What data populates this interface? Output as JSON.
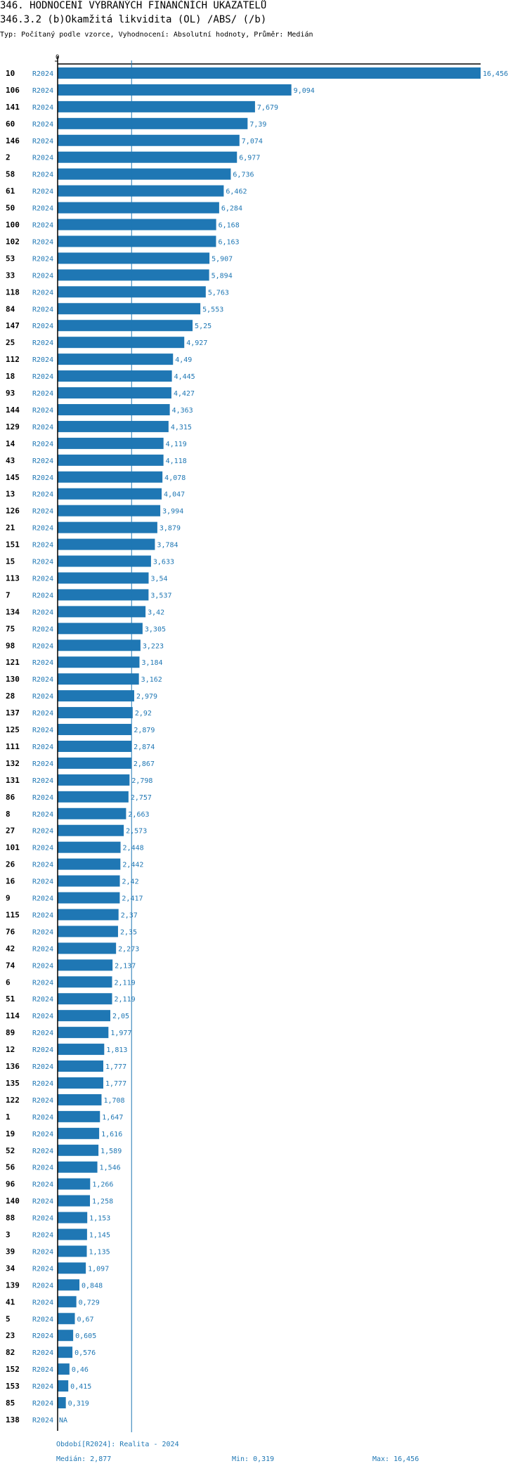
{
  "header": {
    "title": "346. HODNOCENÍ VYBRANÝCH FINANČNÍCH UKAZATELŮ",
    "subtitle": "346.3.2 (b)Okamžitá likvidita (OL) /ABS/ (/b)",
    "type_line": "Typ: Počítaný podle vzorce, Vyhodnocení: Absolutní hodnoty, Průměr: Medián"
  },
  "chart_data": {
    "type": "bar",
    "orientation": "horizontal",
    "axis_zero_label": "0",
    "period_label": "R2024",
    "bar_color": "#1f77b4",
    "median_line_color": "#1f77b4",
    "median_value": 2.877,
    "xlim": [
      0,
      16.456
    ],
    "categories": [
      "10",
      "106",
      "141",
      "60",
      "146",
      "2",
      "58",
      "61",
      "50",
      "100",
      "102",
      "53",
      "33",
      "118",
      "84",
      "147",
      "25",
      "112",
      "18",
      "93",
      "144",
      "129",
      "14",
      "43",
      "145",
      "13",
      "126",
      "21",
      "151",
      "15",
      "113",
      "7",
      "134",
      "75",
      "98",
      "121",
      "130",
      "28",
      "137",
      "125",
      "111",
      "132",
      "131",
      "86",
      "8",
      "27",
      "101",
      "26",
      "16",
      "9",
      "115",
      "76",
      "42",
      "74",
      "6",
      "51",
      "114",
      "89",
      "12",
      "136",
      "135",
      "122",
      "1",
      "19",
      "52",
      "56",
      "96",
      "140",
      "88",
      "3",
      "39",
      "34",
      "139",
      "41",
      "5",
      "23",
      "82",
      "152",
      "153",
      "85",
      "138"
    ],
    "values": [
      16.456,
      9.094,
      7.679,
      7.39,
      7.074,
      6.977,
      6.736,
      6.462,
      6.284,
      6.168,
      6.163,
      5.907,
      5.894,
      5.763,
      5.553,
      5.25,
      4.927,
      4.49,
      4.445,
      4.427,
      4.363,
      4.315,
      4.119,
      4.118,
      4.078,
      4.047,
      3.994,
      3.879,
      3.784,
      3.633,
      3.54,
      3.537,
      3.42,
      3.305,
      3.223,
      3.184,
      3.162,
      2.979,
      2.92,
      2.879,
      2.874,
      2.867,
      2.798,
      2.757,
      2.663,
      2.573,
      2.448,
      2.442,
      2.42,
      2.417,
      2.37,
      2.35,
      2.273,
      2.137,
      2.119,
      2.119,
      2.05,
      1.977,
      1.813,
      1.777,
      1.777,
      1.708,
      1.647,
      1.616,
      1.589,
      1.546,
      1.266,
      1.258,
      1.153,
      1.145,
      1.135,
      1.097,
      0.848,
      0.729,
      0.67,
      0.605,
      0.576,
      0.46,
      0.415,
      0.319,
      null
    ],
    "value_labels": [
      "16,456",
      "9,094",
      "7,679",
      "7,39",
      "7,074",
      "6,977",
      "6,736",
      "6,462",
      "6,284",
      "6,168",
      "6,163",
      "5,907",
      "5,894",
      "5,763",
      "5,553",
      "5,25",
      "4,927",
      "4,49",
      "4,445",
      "4,427",
      "4,363",
      "4,315",
      "4,119",
      "4,118",
      "4,078",
      "4,047",
      "3,994",
      "3,879",
      "3,784",
      "3,633",
      "3,54",
      "3,537",
      "3,42",
      "3,305",
      "3,223",
      "3,184",
      "3,162",
      "2,979",
      "2,92",
      "2,879",
      "2,874",
      "2,867",
      "2,798",
      "2,757",
      "2,663",
      "2,573",
      "2,448",
      "2,442",
      "2,42",
      "2,417",
      "2,37",
      "2,35",
      "2,273",
      "2,137",
      "2,119",
      "2,119",
      "2,05",
      "1,977",
      "1,813",
      "1,777",
      "1,777",
      "1,708",
      "1,647",
      "1,616",
      "1,589",
      "1,546",
      "1,266",
      "1,258",
      "1,153",
      "1,145",
      "1,135",
      "1,097",
      "0,848",
      "0,729",
      "0,67",
      "0,605",
      "0,576",
      "0,46",
      "0,415",
      "0,319",
      "NA"
    ]
  },
  "footer": {
    "period": "Období[R2024]: Realita - 2024",
    "median": "Medián: 2,877",
    "min": "Min: 0,319",
    "max": "Max: 16,456"
  }
}
